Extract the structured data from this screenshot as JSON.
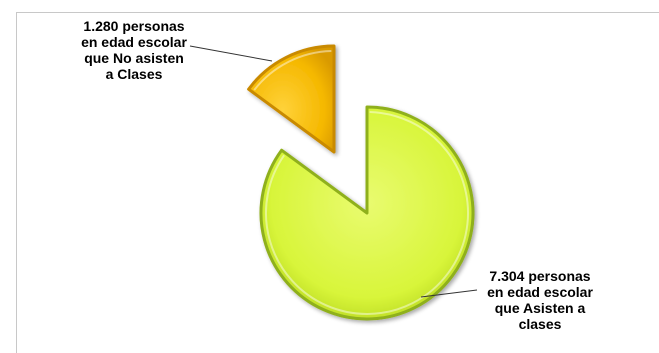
{
  "chart_data": {
    "type": "pie",
    "exploded": true,
    "three_d_bevel": true,
    "categories": [
      "personas en edad escolar que Asisten a clases",
      "personas en edad escolar que No asisten a Clases"
    ],
    "values": [
      7304,
      1280
    ],
    "colors": [
      "#d8f53a",
      "#f5b800"
    ],
    "edge_colors": [
      "#8fb01a",
      "#c98a00"
    ],
    "labels": [
      "7.304 personas\nen edad escolar\nque  Asisten a\nclases",
      "1.280 personas\nen edad escolar\nque No asisten\na Clases"
    ],
    "title": "",
    "legend": "none"
  }
}
